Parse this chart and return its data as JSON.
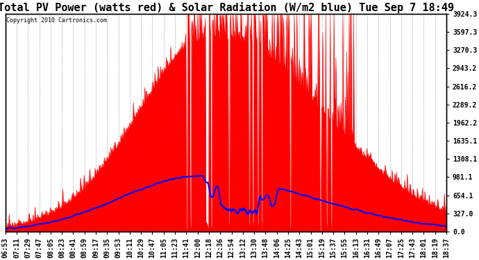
{
  "title": "Total PV Power (watts red) & Solar Radiation (W/m2 blue) Tue Sep 7 18:49",
  "copyright_text": "Copyright 2010 Cartronics.com",
  "yticks": [
    0.0,
    327.0,
    654.1,
    981.1,
    1308.1,
    1635.1,
    1962.2,
    2289.2,
    2616.2,
    2943.2,
    3270.3,
    3597.3,
    3924.3
  ],
  "ylim": [
    0,
    3924.3
  ],
  "background_color": "#ffffff",
  "plot_bg_color": "#ffffff",
  "grid_color": "#999999",
  "pv_color": "red",
  "solar_color": "blue",
  "title_fontsize": 11,
  "tick_fontsize": 7,
  "n_points": 700,
  "xtick_labels": [
    "06:53",
    "07:11",
    "07:29",
    "07:47",
    "08:05",
    "08:23",
    "08:41",
    "08:59",
    "09:17",
    "09:35",
    "09:53",
    "10:11",
    "10:29",
    "10:47",
    "11:05",
    "11:23",
    "11:41",
    "12:00",
    "12:18",
    "12:36",
    "12:54",
    "13:12",
    "13:30",
    "13:48",
    "14:06",
    "14:25",
    "14:43",
    "15:01",
    "15:19",
    "15:37",
    "15:55",
    "16:13",
    "16:31",
    "16:49",
    "17:07",
    "17:25",
    "17:43",
    "18:01",
    "18:19",
    "18:37"
  ]
}
